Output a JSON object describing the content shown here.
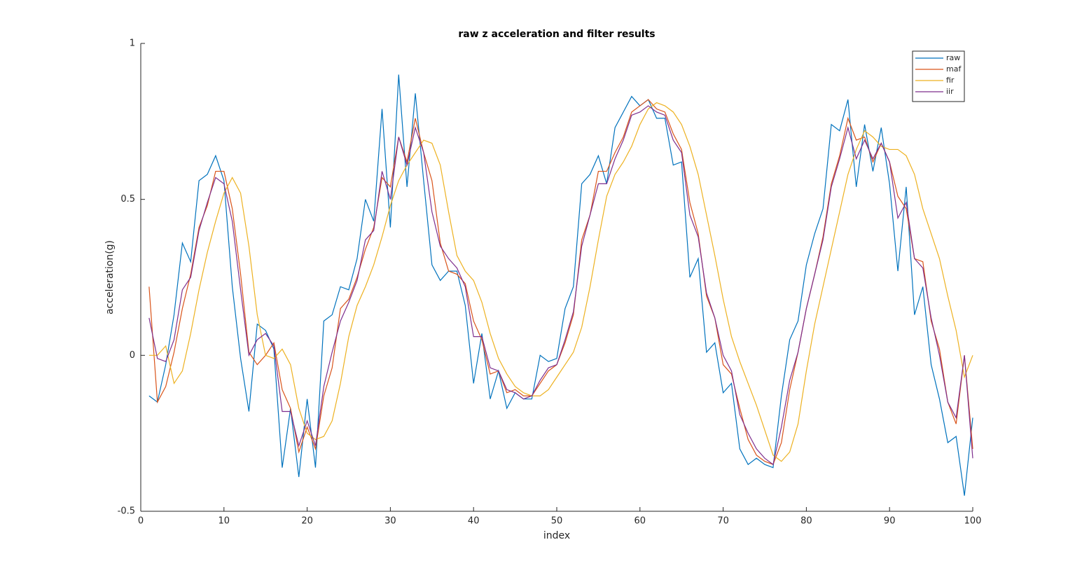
{
  "chart_data": {
    "type": "line",
    "title": "raw z acceleration and filter results",
    "x_label": "index",
    "y_label": "acceleration(g)",
    "x": [
      1,
      2,
      3,
      4,
      5,
      6,
      7,
      8,
      9,
      10,
      11,
      12,
      13,
      14,
      15,
      16,
      17,
      18,
      19,
      20,
      21,
      22,
      23,
      24,
      25,
      26,
      27,
      28,
      29,
      30,
      31,
      32,
      33,
      34,
      35,
      36,
      37,
      38,
      39,
      40,
      41,
      42,
      43,
      44,
      45,
      46,
      47,
      48,
      49,
      50,
      51,
      52,
      53,
      54,
      55,
      56,
      57,
      58,
      59,
      60,
      61,
      62,
      63,
      64,
      65,
      66,
      67,
      68,
      69,
      70,
      71,
      72,
      73,
      74,
      75,
      76,
      77,
      78,
      79,
      80,
      81,
      82,
      83,
      84,
      85,
      86,
      87,
      88,
      89,
      90,
      91,
      92,
      93,
      94,
      95,
      96,
      97,
      98,
      99,
      100
    ],
    "series": [
      {
        "name": "raw",
        "color": "#0072BD",
        "values": [
          -0.13,
          -0.15,
          -0.03,
          0.13,
          0.36,
          0.3,
          0.56,
          0.58,
          0.64,
          0.56,
          0.22,
          -0.01,
          -0.18,
          0.1,
          0.08,
          0.02,
          -0.36,
          -0.17,
          -0.39,
          -0.14,
          -0.36,
          0.11,
          0.13,
          0.22,
          0.21,
          0.31,
          0.5,
          0.43,
          0.79,
          0.41,
          0.9,
          0.54,
          0.84,
          0.56,
          0.29,
          0.24,
          0.27,
          0.27,
          0.16,
          -0.09,
          0.07,
          -0.14,
          -0.05,
          -0.17,
          -0.12,
          -0.14,
          -0.14,
          0.0,
          -0.02,
          -0.01,
          0.15,
          0.22,
          0.55,
          0.58,
          0.64,
          0.55,
          0.73,
          0.78,
          0.83,
          0.8,
          0.82,
          0.76,
          0.76,
          0.61,
          0.62,
          0.25,
          0.31,
          0.01,
          0.04,
          -0.12,
          -0.09,
          -0.3,
          -0.35,
          -0.33,
          -0.35,
          -0.36,
          -0.13,
          0.05,
          0.11,
          0.29,
          0.39,
          0.47,
          0.74,
          0.72,
          0.82,
          0.54,
          0.74,
          0.59,
          0.73,
          0.55,
          0.27,
          0.54,
          0.13,
          0.22,
          -0.03,
          -0.14,
          -0.28,
          -0.26,
          -0.45,
          -0.2
        ]
      },
      {
        "name": "maf",
        "color": "#D95319",
        "values": [
          0.22,
          -0.15,
          -0.1,
          0.01,
          0.15,
          0.26,
          0.41,
          0.48,
          0.59,
          0.59,
          0.47,
          0.26,
          0.01,
          -0.03,
          0.0,
          0.04,
          -0.11,
          -0.17,
          -0.31,
          -0.23,
          -0.3,
          -0.13,
          -0.04,
          0.15,
          0.18,
          0.25,
          0.34,
          0.41,
          0.57,
          0.54,
          0.7,
          0.62,
          0.76,
          0.65,
          0.56,
          0.36,
          0.27,
          0.26,
          0.23,
          0.11,
          0.05,
          -0.06,
          -0.05,
          -0.12,
          -0.11,
          -0.13,
          -0.13,
          -0.09,
          -0.05,
          -0.03,
          0.04,
          0.13,
          0.37,
          0.45,
          0.59,
          0.59,
          0.65,
          0.7,
          0.78,
          0.8,
          0.82,
          0.79,
          0.78,
          0.71,
          0.66,
          0.49,
          0.39,
          0.19,
          0.12,
          -0.03,
          -0.06,
          -0.17,
          -0.27,
          -0.32,
          -0.34,
          -0.35,
          -0.28,
          -0.11,
          0.01,
          0.15,
          0.26,
          0.38,
          0.55,
          0.64,
          0.76,
          0.69,
          0.7,
          0.62,
          0.68,
          0.62,
          0.51,
          0.47,
          0.31,
          0.3,
          0.11,
          0.02,
          -0.15,
          -0.22,
          0.0,
          -0.3
        ]
      },
      {
        "name": "fir",
        "color": "#EDB120",
        "values": [
          0.0,
          0.0,
          0.03,
          -0.09,
          -0.05,
          0.07,
          0.21,
          0.33,
          0.43,
          0.52,
          0.57,
          0.52,
          0.35,
          0.13,
          0.0,
          -0.01,
          0.02,
          -0.03,
          -0.17,
          -0.25,
          -0.27,
          -0.26,
          -0.21,
          -0.09,
          0.06,
          0.16,
          0.22,
          0.29,
          0.38,
          0.48,
          0.56,
          0.61,
          0.65,
          0.69,
          0.68,
          0.61,
          0.46,
          0.32,
          0.27,
          0.24,
          0.17,
          0.07,
          -0.01,
          -0.06,
          -0.1,
          -0.12,
          -0.13,
          -0.13,
          -0.11,
          -0.07,
          -0.03,
          0.01,
          0.09,
          0.22,
          0.37,
          0.51,
          0.58,
          0.62,
          0.67,
          0.74,
          0.79,
          0.81,
          0.8,
          0.78,
          0.74,
          0.67,
          0.58,
          0.45,
          0.32,
          0.18,
          0.06,
          -0.02,
          -0.09,
          -0.16,
          -0.24,
          -0.32,
          -0.34,
          -0.31,
          -0.22,
          -0.05,
          0.1,
          0.22,
          0.34,
          0.46,
          0.58,
          0.66,
          0.72,
          0.7,
          0.67,
          0.66,
          0.66,
          0.64,
          0.58,
          0.47,
          0.39,
          0.31,
          0.19,
          0.08,
          -0.07,
          0.0
        ]
      },
      {
        "name": "iir",
        "color": "#7E2F8E",
        "values": [
          0.12,
          -0.01,
          -0.02,
          0.05,
          0.21,
          0.25,
          0.4,
          0.49,
          0.57,
          0.55,
          0.43,
          0.21,
          0.0,
          0.05,
          0.07,
          0.03,
          -0.18,
          -0.18,
          -0.29,
          -0.21,
          -0.29,
          -0.1,
          0.01,
          0.11,
          0.17,
          0.24,
          0.37,
          0.4,
          0.59,
          0.5,
          0.7,
          0.61,
          0.73,
          0.65,
          0.46,
          0.35,
          0.31,
          0.28,
          0.22,
          0.06,
          0.06,
          -0.04,
          -0.05,
          -0.11,
          -0.12,
          -0.14,
          -0.13,
          -0.08,
          -0.04,
          -0.03,
          0.05,
          0.14,
          0.35,
          0.45,
          0.55,
          0.55,
          0.63,
          0.69,
          0.77,
          0.78,
          0.8,
          0.78,
          0.77,
          0.69,
          0.65,
          0.45,
          0.38,
          0.2,
          0.12,
          0.0,
          -0.05,
          -0.19,
          -0.25,
          -0.3,
          -0.33,
          -0.35,
          -0.23,
          -0.08,
          0.01,
          0.15,
          0.26,
          0.37,
          0.54,
          0.63,
          0.73,
          0.63,
          0.69,
          0.63,
          0.68,
          0.62,
          0.44,
          0.49,
          0.31,
          0.28,
          0.12,
          0.0,
          -0.15,
          -0.2,
          0.0,
          -0.33
        ]
      }
    ],
    "xlim": [
      0,
      100
    ],
    "xticks": [
      0,
      10,
      20,
      30,
      40,
      50,
      60,
      70,
      80,
      90,
      100
    ],
    "ylim": [
      -0.5,
      1
    ],
    "yticks": [
      -0.5,
      0,
      0.5,
      1
    ],
    "grid": false,
    "legend": "northeast"
  }
}
